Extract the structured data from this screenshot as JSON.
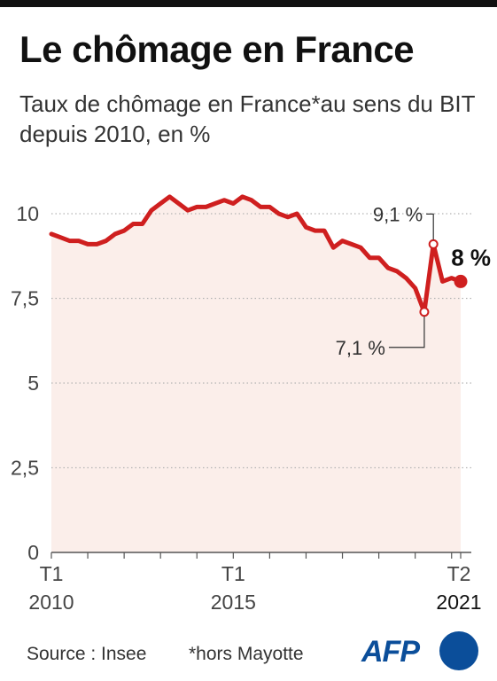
{
  "header": {
    "title": "Le chômage en France",
    "subtitle": "Taux de chômage en France*au sens du BIT depuis 2010, en %"
  },
  "footer": {
    "source": "Source : Insee",
    "footnote": "*hors Mayotte",
    "logo": "AFP"
  },
  "colors": {
    "line": "#cf1f1f",
    "area": "#fbeeea",
    "grid": "#b5b5b5",
    "axis_text": "#444444",
    "logo": "#0b4e9a"
  },
  "chart_data": {
    "type": "line",
    "title": "Le chômage en France",
    "subtitle": "Taux de chômage en France*au sens du BIT depuis 2010, en %",
    "ylim": [
      0,
      10.9
    ],
    "yticks": [
      0,
      2.5,
      5,
      7.5,
      10
    ],
    "ytick_labels": [
      "0",
      "2,5",
      "5",
      "7,5",
      "10"
    ],
    "xticks": [
      {
        "index": 0,
        "line1": "T1",
        "line2": "2010"
      },
      {
        "index": 20,
        "line1": "T1",
        "line2": "2015"
      },
      {
        "index": 45,
        "line1": "T2",
        "line2": "2021"
      }
    ],
    "grid": true,
    "area_fill": true,
    "x": [
      "2010-T1",
      "2010-T2",
      "2010-T3",
      "2010-T4",
      "2011-T1",
      "2011-T2",
      "2011-T3",
      "2011-T4",
      "2012-T1",
      "2012-T2",
      "2012-T3",
      "2012-T4",
      "2013-T1",
      "2013-T2",
      "2013-T3",
      "2013-T4",
      "2014-T1",
      "2014-T2",
      "2014-T3",
      "2014-T4",
      "2015-T1",
      "2015-T2",
      "2015-T3",
      "2015-T4",
      "2016-T1",
      "2016-T2",
      "2016-T3",
      "2016-T4",
      "2017-T1",
      "2017-T2",
      "2017-T3",
      "2017-T4",
      "2018-T1",
      "2018-T2",
      "2018-T3",
      "2018-T4",
      "2019-T1",
      "2019-T2",
      "2019-T3",
      "2019-T4",
      "2020-T1",
      "2020-T2",
      "2020-T3",
      "2020-T4",
      "2021-T1",
      "2021-T2"
    ],
    "series": [
      {
        "values": [
          9.4,
          9.3,
          9.2,
          9.2,
          9.1,
          9.1,
          9.2,
          9.4,
          9.5,
          9.7,
          9.7,
          10.1,
          10.3,
          10.5,
          10.3,
          10.1,
          10.2,
          10.2,
          10.3,
          10.4,
          10.3,
          10.5,
          10.4,
          10.2,
          10.2,
          10.0,
          9.9,
          10.0,
          9.6,
          9.5,
          9.5,
          9.0,
          9.2,
          9.1,
          9.0,
          8.7,
          8.7,
          8.4,
          8.3,
          8.1,
          7.8,
          7.1,
          9.1,
          8.0,
          8.1,
          8.0
        ]
      }
    ],
    "annotations": [
      {
        "index": 41,
        "label": "7,1 %",
        "marker": "hollow"
      },
      {
        "index": 42,
        "label": "9,1 %",
        "marker": "hollow"
      },
      {
        "index": 45,
        "label": "8 %",
        "marker": "filled",
        "bold": true
      }
    ]
  }
}
